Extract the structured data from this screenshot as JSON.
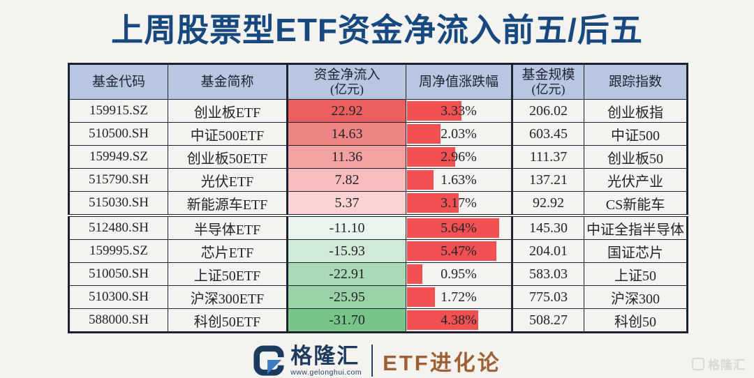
{
  "page": {
    "title": "上周股票型ETF资金净流入前五/后五"
  },
  "colors": {
    "background": "#f4f3f0",
    "title": "#17497e",
    "header_bg": "#b7c7e1",
    "border": "#1a2230",
    "data_bar_red": "#f15152",
    "flow_scale_pos_max": "#eb5f5f",
    "flow_scale_neg_max": "#78c489",
    "brand_navy": "#1d3a5f",
    "series_brown": "#a05f35"
  },
  "table": {
    "headers": [
      {
        "label": "基金代码",
        "sub": ""
      },
      {
        "label": "基金简称",
        "sub": ""
      },
      {
        "label": "资金净流入",
        "sub": "(亿元)"
      },
      {
        "label": "周净值涨跌幅",
        "sub": ""
      },
      {
        "label": "基金规模",
        "sub": "(亿元)"
      },
      {
        "label": "跟踪指数",
        "sub": ""
      }
    ],
    "rows": [
      {
        "code": "159915.SZ",
        "name": "创业板ETF",
        "flow": "22.92",
        "flow_value": 22.92,
        "flow_bg": "#eb5f5f",
        "change": "3.33%",
        "change_value": 3.33,
        "size": "206.02",
        "index": "创业板指"
      },
      {
        "code": "510500.SH",
        "name": "中证500ETF",
        "flow": "14.63",
        "flow_value": 14.63,
        "flow_bg": "#ef8585",
        "change": "2.03%",
        "change_value": 2.03,
        "size": "603.45",
        "index": "中证500"
      },
      {
        "code": "159949.SZ",
        "name": "创业板50ETF",
        "flow": "11.36",
        "flow_value": 11.36,
        "flow_bg": "#f3a1a1",
        "change": "2.96%",
        "change_value": 2.96,
        "size": "111.37",
        "index": "创业板50"
      },
      {
        "code": "515790.SH",
        "name": "光伏ETF",
        "flow": "7.82",
        "flow_value": 7.82,
        "flow_bg": "#f7bcbc",
        "change": "1.63%",
        "change_value": 1.63,
        "size": "137.21",
        "index": "光伏产业"
      },
      {
        "code": "515030.SH",
        "name": "新能源车ETF",
        "flow": "5.37",
        "flow_value": 5.37,
        "flow_bg": "#fad3d3",
        "change": "3.17%",
        "change_value": 3.17,
        "size": "92.92",
        "index": "CS新能车"
      },
      {
        "code": "512480.SH",
        "name": "半导体ETF",
        "flow": "-11.10",
        "flow_value": -11.1,
        "flow_bg": "#eaf4ed",
        "change": "5.64%",
        "change_value": 5.64,
        "size": "145.30",
        "index": "中证全指半导体"
      },
      {
        "code": "159995.SZ",
        "name": "芯片ETF",
        "flow": "-15.93",
        "flow_value": -15.93,
        "flow_bg": "#d1e9d7",
        "change": "5.47%",
        "change_value": 5.47,
        "size": "204.01",
        "index": "国证芯片"
      },
      {
        "code": "510050.SH",
        "name": "上证50ETF",
        "flow": "-22.91",
        "flow_value": -22.91,
        "flow_bg": "#aadab5",
        "change": "0.95%",
        "change_value": 0.95,
        "size": "583.03",
        "index": "上证50"
      },
      {
        "code": "510300.SH",
        "name": "沪深300ETF",
        "flow": "-25.95",
        "flow_value": -25.95,
        "flow_bg": "#9ad2a8",
        "change": "1.72%",
        "change_value": 1.72,
        "size": "775.03",
        "index": "沪深300"
      },
      {
        "code": "588000.SH",
        "name": "科创50ETF",
        "flow": "-31.70",
        "flow_value": -31.7,
        "flow_bg": "#78c489",
        "change": "4.38%",
        "change_value": 4.38,
        "size": "508.27",
        "index": "科创50"
      }
    ]
  },
  "footer": {
    "brand": "格隆汇",
    "website": "www.gelonghui.com",
    "series": "ETF进化论"
  },
  "watermark": "格隆汇",
  "chart_data": {
    "type": "table",
    "title": "上周股票型ETF资金净流入前五/后五",
    "columns": [
      "基金代码",
      "基金简称",
      "资金净流入(亿元)",
      "周净值涨跌幅(%)",
      "基金规模(亿元)",
      "跟踪指数"
    ],
    "rows": [
      [
        "159915.SZ",
        "创业板ETF",
        22.92,
        3.33,
        206.02,
        "创业板指"
      ],
      [
        "510500.SH",
        "中证500ETF",
        14.63,
        2.03,
        603.45,
        "中证500"
      ],
      [
        "159949.SZ",
        "创业板50ETF",
        11.36,
        2.96,
        111.37,
        "创业板50"
      ],
      [
        "515790.SH",
        "光伏ETF",
        7.82,
        1.63,
        137.21,
        "光伏产业"
      ],
      [
        "515030.SH",
        "新能源车ETF",
        5.37,
        3.17,
        92.92,
        "CS新能车"
      ],
      [
        "512480.SH",
        "半导体ETF",
        -11.1,
        5.64,
        145.3,
        "中证全指半导体"
      ],
      [
        "159995.SZ",
        "芯片ETF",
        -15.93,
        5.47,
        204.01,
        "国证芯片"
      ],
      [
        "510050.SH",
        "上证50ETF",
        -22.91,
        0.95,
        583.03,
        "上证50"
      ],
      [
        "510300.SH",
        "沪深300ETF",
        -25.95,
        1.72,
        775.03,
        "沪深300"
      ],
      [
        "588000.SH",
        "科创50ETF",
        -31.7,
        4.38,
        508.27,
        "科创50"
      ]
    ],
    "layout_hints": {
      "net_flow_style": "diverging color scale, red for positive inflow, green for negative outflow, intensity proportional to magnitude",
      "weekly_change_style": "red in-cell data bars, width proportional to value, max 5.64%",
      "group_separator": "thick border between row 5 (top-five inflow) and row 6 (bottom-five outflow)"
    }
  }
}
